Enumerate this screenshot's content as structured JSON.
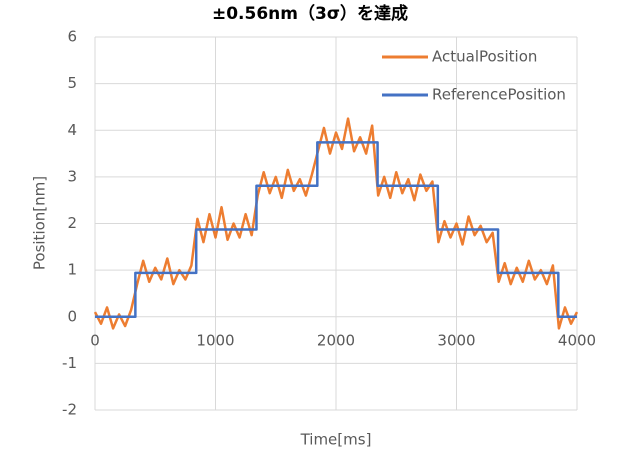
{
  "chart_data": {
    "type": "line",
    "title": "±0.56nm（3σ）を達成",
    "x_label": "Time[ms]",
    "y_label": "Position[nm]",
    "xlim": [
      0,
      4000
    ],
    "xticks": [
      0,
      1000,
      2000,
      3000,
      4000
    ],
    "ylim": [
      -2,
      6
    ],
    "yticks": [
      -2,
      -1,
      0,
      1,
      2,
      3,
      4,
      5,
      6
    ],
    "grid": true,
    "legend": "upper right",
    "series": [
      {
        "name": "ActualPosition",
        "color": "#ed7d31",
        "x": [
          0,
          50,
          100,
          150,
          200,
          250,
          300,
          350,
          400,
          450,
          500,
          550,
          600,
          650,
          700,
          750,
          800,
          850,
          900,
          950,
          1000,
          1050,
          1100,
          1150,
          1200,
          1250,
          1300,
          1350,
          1400,
          1450,
          1500,
          1550,
          1600,
          1650,
          1700,
          1750,
          1800,
          1850,
          1900,
          1950,
          2000,
          2050,
          2100,
          2150,
          2200,
          2250,
          2300,
          2350,
          2400,
          2450,
          2500,
          2550,
          2600,
          2650,
          2700,
          2750,
          2800,
          2850,
          2900,
          2950,
          3000,
          3050,
          3100,
          3150,
          3200,
          3250,
          3300,
          3350,
          3400,
          3450,
          3500,
          3550,
          3600,
          3650,
          3700,
          3750,
          3800,
          3850,
          3900,
          3950,
          4000
        ],
        "values": [
          0.1,
          -0.15,
          0.2,
          -0.25,
          0.05,
          -0.2,
          0.15,
          0.7,
          1.2,
          0.75,
          1.05,
          0.8,
          1.25,
          0.7,
          1.0,
          0.8,
          1.1,
          2.1,
          1.6,
          2.2,
          1.7,
          2.35,
          1.65,
          2.0,
          1.7,
          2.2,
          1.75,
          2.6,
          3.1,
          2.65,
          3.0,
          2.55,
          3.15,
          2.7,
          2.95,
          2.6,
          3.05,
          3.55,
          4.05,
          3.5,
          3.95,
          3.6,
          4.25,
          3.55,
          3.85,
          3.5,
          4.1,
          2.6,
          3.0,
          2.55,
          3.1,
          2.65,
          2.95,
          2.5,
          3.05,
          2.7,
          2.9,
          1.6,
          2.05,
          1.7,
          2.0,
          1.55,
          2.15,
          1.75,
          1.95,
          1.6,
          1.8,
          0.75,
          1.15,
          0.7,
          1.05,
          0.75,
          1.2,
          0.8,
          1.0,
          0.7,
          1.1,
          -0.25,
          0.2,
          -0.15,
          0.1
        ]
      },
      {
        "name": "ReferencePosition",
        "color": "#4472c4",
        "x": [
          0,
          335,
          335,
          840,
          840,
          1340,
          1340,
          1845,
          1845,
          2345,
          2345,
          2845,
          2845,
          3345,
          3345,
          3845,
          3845,
          4000
        ],
        "values": [
          0,
          0,
          0.94,
          0.94,
          1.87,
          1.87,
          2.81,
          2.81,
          3.74,
          3.74,
          2.81,
          2.81,
          1.87,
          1.87,
          0.94,
          0.94,
          0,
          0
        ]
      }
    ]
  }
}
